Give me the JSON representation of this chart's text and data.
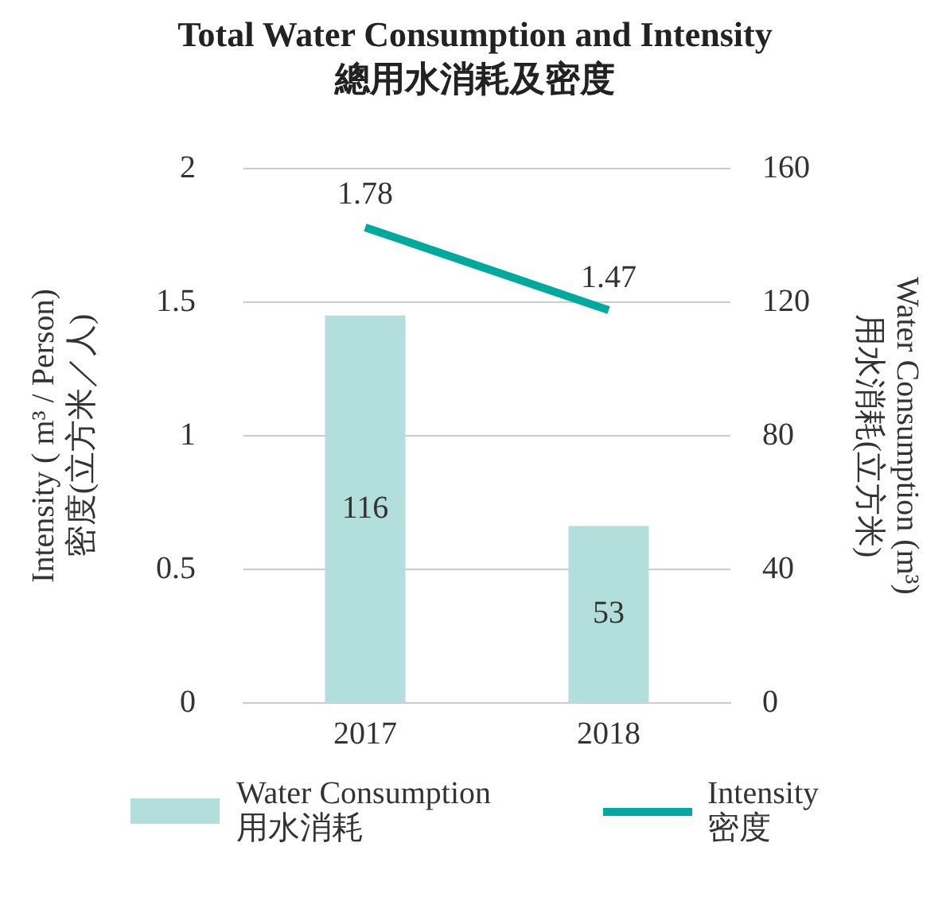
{
  "chart_data": {
    "type": "bar",
    "title": "Total Water Consumption and Intensity",
    "subtitle": "總用水消耗及密度",
    "categories": [
      "2017",
      "2018"
    ],
    "ylabel": "Intensity ( m³ / Person)\n密度(立方米／人)",
    "y2label": "Water Consumption (m³)\n用水消耗(立方米)",
    "series": [
      {
        "name": "Water Consumption\n用水消耗",
        "axis": "y2",
        "color": "#b2dfdb",
        "values": [
          116,
          53
        ]
      },
      {
        "name": "Intensity\n密度",
        "type": "line",
        "axis": "y",
        "color": "#00a99d",
        "values": [
          1.78,
          1.47
        ]
      }
    ],
    "ylim": [
      0,
      2
    ],
    "yticks": [
      0,
      0.5,
      1,
      1.5,
      2
    ],
    "y2lim": [
      0,
      160
    ],
    "y2ticks": [
      0,
      40,
      80,
      120,
      160
    ],
    "grid": "y",
    "legend": "bottom",
    "data_labels": true,
    "marker": "none",
    "line_style": "solid"
  }
}
